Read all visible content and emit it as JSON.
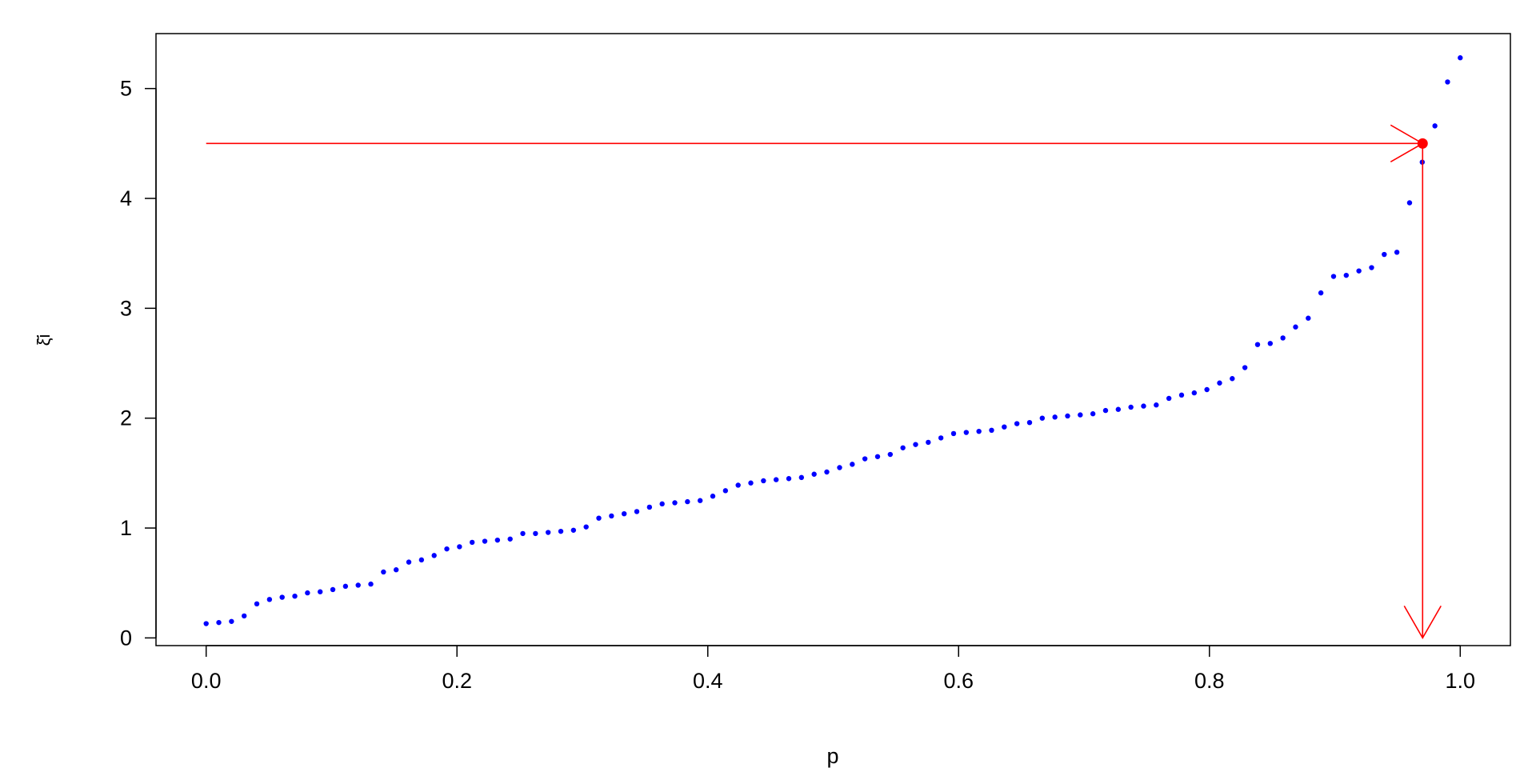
{
  "chart_data": {
    "type": "scatter",
    "title": "",
    "xlabel": "p",
    "ylabel": "ξ̄i",
    "xlim": [
      -0.04,
      1.04
    ],
    "ylim": [
      -0.07,
      5.5
    ],
    "x_ticks": [
      "0.0",
      "0.2",
      "0.4",
      "0.6",
      "0.8",
      "1.0"
    ],
    "x_tick_values": [
      0,
      0.2,
      0.4,
      0.6,
      0.8,
      1.0
    ],
    "y_ticks": [
      "0",
      "1",
      "2",
      "3",
      "4",
      "5"
    ],
    "y_tick_values": [
      0,
      1,
      2,
      3,
      4,
      5
    ],
    "grid": false,
    "point_color": "#0000ff",
    "highlight_color": "#ff0000",
    "x": [
      0.0,
      0.0101,
      0.0202,
      0.0303,
      0.0404,
      0.0505,
      0.0606,
      0.0707,
      0.0808,
      0.0909,
      0.101,
      0.1111,
      0.1212,
      0.1313,
      0.1414,
      0.1515,
      0.1616,
      0.1717,
      0.1818,
      0.1919,
      0.202,
      0.2121,
      0.2222,
      0.2323,
      0.2424,
      0.2525,
      0.2626,
      0.2727,
      0.2828,
      0.2929,
      0.303,
      0.3131,
      0.3232,
      0.3333,
      0.3434,
      0.3535,
      0.3636,
      0.3737,
      0.3838,
      0.3939,
      0.404,
      0.4141,
      0.4242,
      0.4343,
      0.4444,
      0.4545,
      0.4646,
      0.4747,
      0.4848,
      0.4949,
      0.5051,
      0.5152,
      0.5253,
      0.5354,
      0.5455,
      0.5556,
      0.5657,
      0.5758,
      0.5859,
      0.596,
      0.6061,
      0.6162,
      0.6263,
      0.6364,
      0.6465,
      0.6566,
      0.6667,
      0.6768,
      0.6869,
      0.697,
      0.7071,
      0.7172,
      0.7273,
      0.7374,
      0.7475,
      0.7576,
      0.7677,
      0.7778,
      0.7879,
      0.798,
      0.8081,
      0.8182,
      0.8283,
      0.8384,
      0.8485,
      0.8586,
      0.8687,
      0.8788,
      0.8889,
      0.899,
      0.9091,
      0.9192,
      0.9293,
      0.9394,
      0.9495,
      0.9596,
      0.9697,
      0.9798,
      0.9899,
      1.0
    ],
    "y": [
      0.13,
      0.14,
      0.15,
      0.2,
      0.31,
      0.35,
      0.37,
      0.38,
      0.41,
      0.42,
      0.44,
      0.47,
      0.48,
      0.49,
      0.6,
      0.62,
      0.69,
      0.71,
      0.75,
      0.81,
      0.83,
      0.87,
      0.88,
      0.89,
      0.9,
      0.95,
      0.95,
      0.96,
      0.97,
      0.98,
      1.01,
      1.09,
      1.11,
      1.13,
      1.15,
      1.19,
      1.22,
      1.23,
      1.24,
      1.25,
      1.29,
      1.34,
      1.39,
      1.41,
      1.43,
      1.44,
      1.45,
      1.46,
      1.49,
      1.51,
      1.55,
      1.58,
      1.63,
      1.65,
      1.67,
      1.73,
      1.76,
      1.78,
      1.82,
      1.86,
      1.87,
      1.88,
      1.89,
      1.92,
      1.95,
      1.96,
      2.0,
      2.01,
      2.02,
      2.03,
      2.04,
      2.07,
      2.08,
      2.1,
      2.11,
      2.12,
      2.18,
      2.21,
      2.23,
      2.26,
      2.32,
      2.36,
      2.46,
      2.67,
      2.68,
      2.73,
      2.83,
      2.91,
      3.14,
      3.29,
      3.3,
      3.34,
      3.37,
      3.49,
      3.51,
      3.96,
      4.33,
      4.66,
      5.06,
      5.28
    ],
    "highlight_point": {
      "x": 0.97,
      "y": 4.5
    }
  }
}
